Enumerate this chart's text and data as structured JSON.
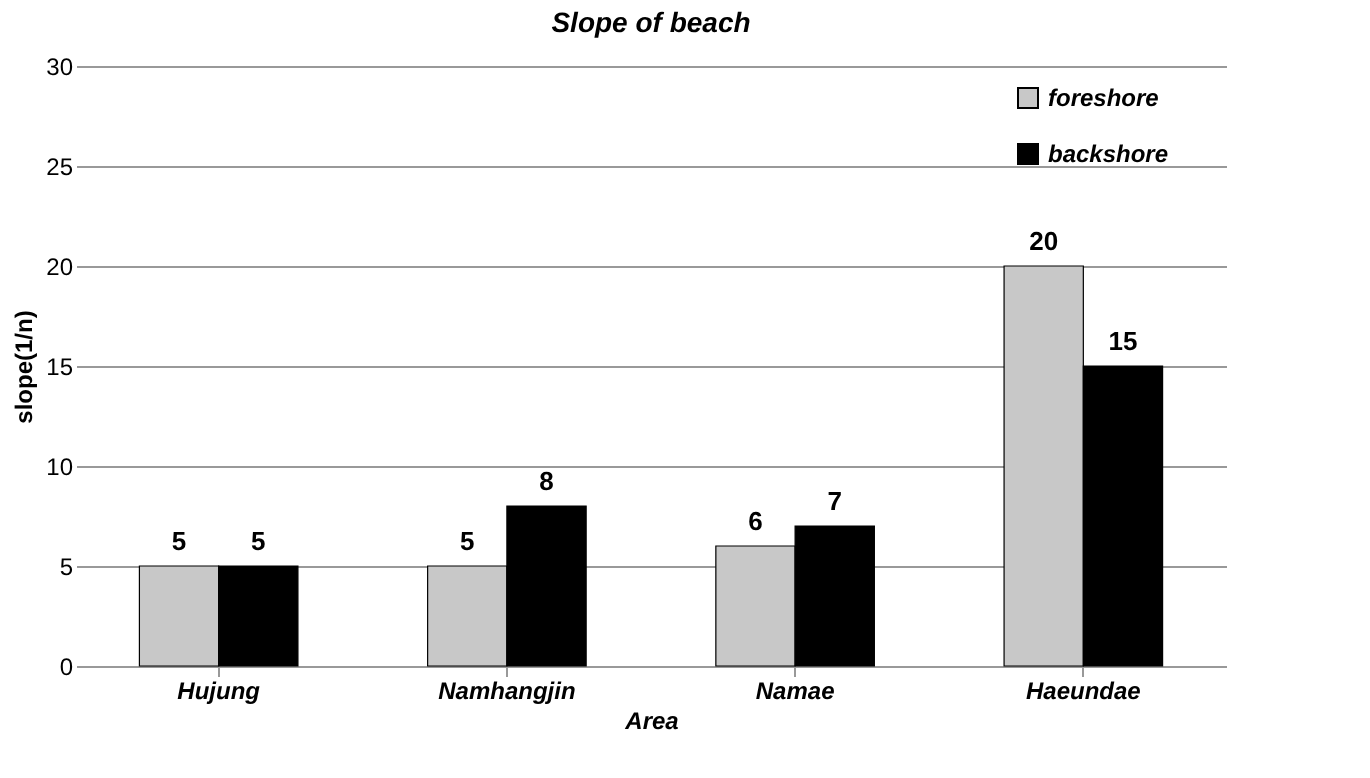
{
  "chart_data": {
    "type": "bar",
    "title": "Slope of beach",
    "xlabel": "Area",
    "ylabel": "slope(1/n)",
    "categories": [
      "Hujung",
      "Namhangjin",
      "Namae",
      "Haeundae"
    ],
    "series": [
      {
        "name": "foreshore",
        "color": "#c8c8c8",
        "values": [
          5,
          5,
          6,
          20
        ]
      },
      {
        "name": "backshore",
        "color": "#000000",
        "values": [
          5,
          8,
          7,
          15
        ]
      }
    ],
    "ylim": [
      0,
      30
    ],
    "yticks": [
      0,
      5,
      10,
      15,
      20,
      25,
      30
    ],
    "grid": "y",
    "legend": "top right",
    "data_labels": true
  }
}
